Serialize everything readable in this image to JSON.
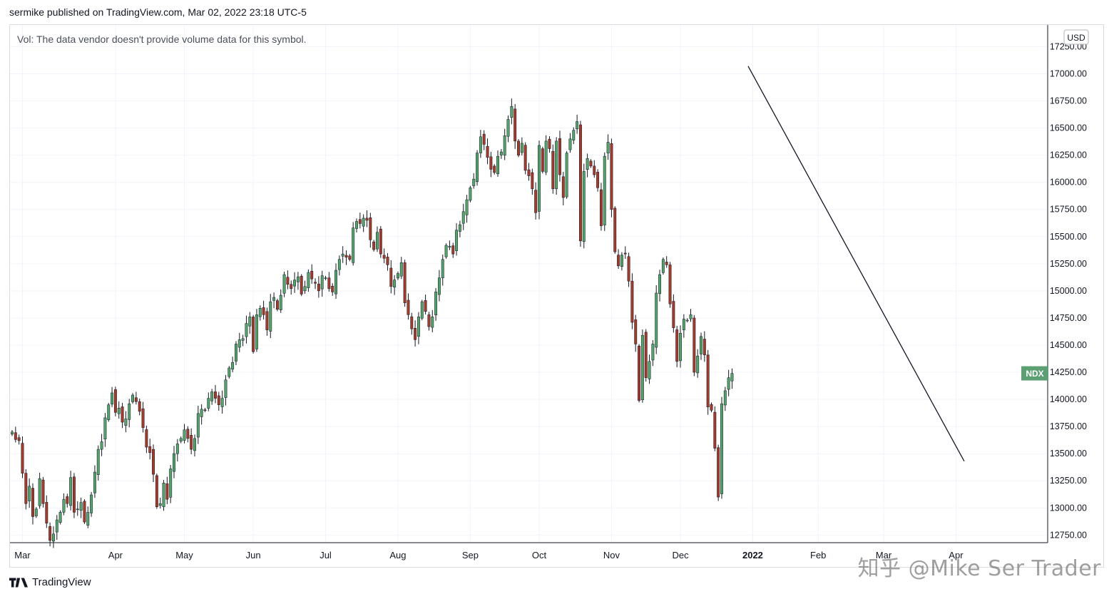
{
  "header": {
    "published_text": "sermike published on TradingView.com, Mar 02, 2022 23:18 UTC-5"
  },
  "chart_note": "Vol: The data vendor doesn't provide volume data for this symbol.",
  "currency_label": "USD",
  "symbol_label": "NDX",
  "footer": {
    "brand": "TradingView"
  },
  "watermark": "知乎 @Mike Ser Trader",
  "colors": {
    "up": "#53a36b",
    "down": "#a33b2c",
    "symbol_tag": "#5b9f72",
    "grid": "#f0f3fa",
    "trendline": "#131722"
  },
  "chart_data": {
    "type": "candlestick",
    "symbol": "NDX",
    "ylim": [
      12680,
      17450
    ],
    "y_ticks": [
      12750,
      13000,
      13250,
      13500,
      13750,
      14000,
      14250,
      14500,
      14750,
      15000,
      15250,
      15500,
      15750,
      16000,
      16250,
      16500,
      16750,
      17000,
      17250
    ],
    "y_tick_labels": [
      "12750.00",
      "13000.00",
      "13250.00",
      "13500.00",
      "13750.00",
      "14000.00",
      "14250.00",
      "14500.00",
      "14750.00",
      "15000.00",
      "15250.00",
      "15500.00",
      "15750.00",
      "16000.00",
      "16250.00",
      "16500.00",
      "16750.00",
      "17000.00",
      "17250.00"
    ],
    "x_months": [
      "Mar",
      "Apr",
      "May",
      "Jun",
      "Jul",
      "Aug",
      "Sep",
      "Oct",
      "Nov",
      "Dec",
      "2022",
      "Feb",
      "Mar",
      "Apr"
    ],
    "x_month_index": [
      3,
      30,
      50,
      70,
      91,
      112,
      133,
      153,
      174,
      194,
      215,
      234,
      253,
      274
    ],
    "last_price": 14240,
    "closes": [
      13700,
      13630,
      13620,
      13320,
      13040,
      13200,
      12920,
      12990,
      13270,
      13040,
      12860,
      12700,
      12760,
      12890,
      12960,
      13080,
      13040,
      13280,
      12960,
      12990,
      13050,
      12870,
      12960,
      13120,
      13330,
      13540,
      13610,
      13830,
      13950,
      14060,
      13880,
      13920,
      13790,
      13820,
      13960,
      14040,
      13980,
      13890,
      13740,
      13560,
      13510,
      13310,
      13010,
      13040,
      13230,
      13080,
      13360,
      13500,
      13590,
      13640,
      13720,
      13640,
      13540,
      13640,
      13870,
      13910,
      13900,
      14010,
      14070,
      14010,
      13950,
      14010,
      14180,
      14290,
      14340,
      14510,
      14550,
      14560,
      14700,
      14760,
      14440,
      14780,
      14840,
      14780,
      14640,
      14900,
      14940,
      14830,
      14960,
      15150,
      15060,
      15020,
      15100,
      15130,
      14970,
      15040,
      15170,
      15110,
      15070,
      15000,
      15140,
      15120,
      15020,
      14990,
      15190,
      15290,
      15340,
      15310,
      15290,
      15580,
      15640,
      15620,
      15670,
      15650,
      15470,
      15380,
      15540,
      15340,
      15300,
      15240,
      15040,
      15100,
      15160,
      15260,
      14890,
      14780,
      14650,
      14550,
      14760,
      14900,
      14810,
      14670,
      14760,
      14990,
      15120,
      15290,
      15420,
      15410,
      15340,
      15560,
      15610,
      15730,
      15840,
      15950,
      16030,
      16270,
      16420,
      16350,
      16230,
      16120,
      16090,
      16240,
      16280,
      16430,
      16580,
      16700,
      16380,
      16250,
      16360,
      16110,
      16060,
      15940,
      15720,
      16340,
      16100,
      16380,
      16310,
      15940,
      16380,
      16070,
      15860,
      16270,
      16400,
      16480,
      16560,
      15460,
      16100,
      16220,
      16150,
      16070,
      15950,
      15600,
      16240,
      16370,
      15750,
      15360,
      15230,
      15330,
      15340,
      15090,
      14710,
      14510,
      13990,
      14590,
      14200,
      14350,
      14510,
      14980,
      15150,
      15290,
      15240,
      14880,
      14660,
      14350,
      14610,
      14740,
      14730,
      14780,
      14250,
      14400,
      14580,
      14410,
      13930,
      13900,
      13550,
      13100,
      13960,
      14080,
      14200,
      14240
    ]
  }
}
